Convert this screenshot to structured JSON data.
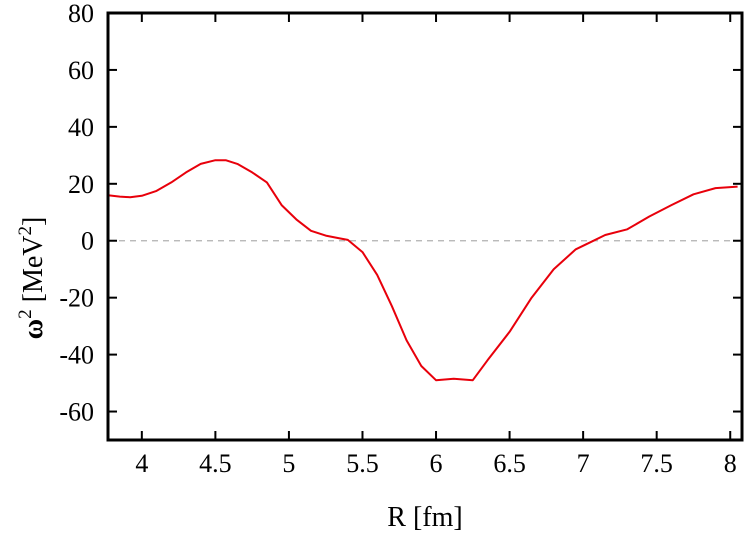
{
  "chart_data": {
    "type": "line",
    "title": "",
    "xlabel": "R [fm]",
    "ylabel": {
      "symbol": "ω",
      "symbol_exp": "2",
      "units_open": " [MeV",
      "units_exp": "2",
      "units_close": "]"
    },
    "xlim": [
      3.77,
      8.08
    ],
    "ylim": [
      -70,
      80
    ],
    "x_ticks": [
      4,
      4.5,
      5,
      5.5,
      6,
      6.5,
      7,
      7.5,
      8
    ],
    "x_tick_labels": [
      "4",
      "4.5",
      "5",
      "5.5",
      "6",
      "6.5",
      "7",
      "7.5",
      "8"
    ],
    "y_ticks": [
      -60,
      -40,
      -20,
      0,
      20,
      40,
      60,
      80
    ],
    "y_tick_labels": [
      "-60",
      "-40",
      "-20",
      "0",
      "20",
      "40",
      "60",
      "80"
    ],
    "grid": false,
    "reference_line": {
      "y": 0,
      "style": "dashed",
      "color": "#b0b0b0"
    },
    "series": [
      {
        "color": "#e8000b",
        "x": [
          3.77,
          3.85,
          3.92,
          4.0,
          4.1,
          4.2,
          4.3,
          4.4,
          4.5,
          4.57,
          4.65,
          4.75,
          4.85,
          4.95,
          5.05,
          5.15,
          5.25,
          5.35,
          5.4,
          5.5,
          5.6,
          5.7,
          5.8,
          5.9,
          6.0,
          6.12,
          6.25,
          6.35,
          6.5,
          6.65,
          6.8,
          6.95,
          7.05,
          7.15,
          7.3,
          7.45,
          7.6,
          7.75,
          7.9,
          8.05
        ],
        "y": [
          16,
          15.5,
          15.3,
          15.8,
          17.5,
          20.5,
          24,
          27,
          28.3,
          28.3,
          27,
          24,
          20.5,
          12.5,
          7.5,
          3.5,
          1.8,
          0.8,
          0.3,
          -4,
          -12,
          -23,
          -35,
          -44,
          -49,
          -48.5,
          -49,
          -42,
          -32,
          -20,
          -10,
          -3,
          -0.5,
          2,
          4,
          8.5,
          12.5,
          16.3,
          18.5,
          19
        ]
      }
    ]
  }
}
